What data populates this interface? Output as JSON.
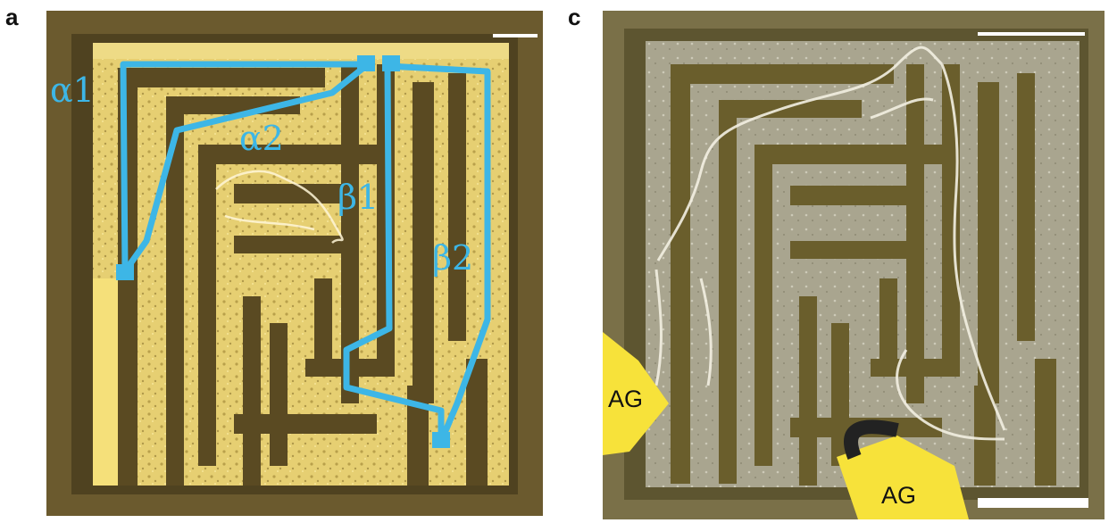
{
  "panels": {
    "a": {
      "letter": "a"
    },
    "c": {
      "letter": "c"
    }
  },
  "path_labels": {
    "alpha1": "α1",
    "alpha2": "α2",
    "beta1": "β1",
    "beta2": "β2"
  },
  "electrode_labels": {
    "ag_left": "AG",
    "ag_bottom": "AG"
  },
  "colors": {
    "path_line": "#3db6e6",
    "maze_wall": "#5a4a22",
    "channel_gold": "#e8d27a",
    "channel_silver": "#b8b4a2",
    "electrode": "#f7e23a"
  }
}
